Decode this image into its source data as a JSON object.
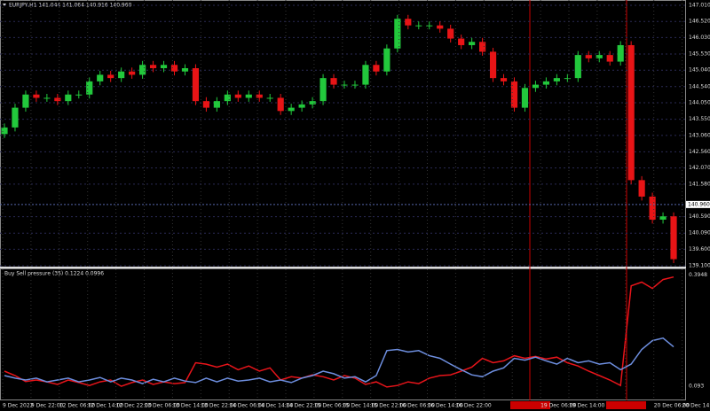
{
  "chart_data": [
    {
      "type": "candlestick",
      "title": "EURJPY,H1  141.044 141.064 140.916 140.960",
      "up_color": "#22c83c",
      "down_color": "#e81416",
      "grid": true,
      "open": [
        143.1,
        143.3,
        143.9,
        144.3,
        144.2,
        144.2,
        144.1,
        144.3,
        144.3,
        144.7,
        144.9,
        144.8,
        145.0,
        144.9,
        145.2,
        145.1,
        145.2,
        145.0,
        145.1,
        144.1,
        143.9,
        144.1,
        144.3,
        144.2,
        144.3,
        144.2,
        144.2,
        143.8,
        143.9,
        144.0,
        144.1,
        144.8,
        144.6,
        144.6,
        144.6,
        145.2,
        145.0,
        145.7,
        146.6,
        146.4,
        146.4,
        146.4,
        146.3,
        146.0,
        145.8,
        145.9,
        145.6,
        144.8,
        144.7,
        143.9,
        144.5,
        144.6,
        144.7,
        144.8,
        144.8,
        145.5,
        145.4,
        145.5,
        145.3,
        145.8,
        141.7,
        141.2,
        140.5,
        140.6
      ],
      "high": [
        143.42,
        144.02,
        144.42,
        144.42,
        144.32,
        144.32,
        144.42,
        144.42,
        144.82,
        145.02,
        145.02,
        145.12,
        145.12,
        145.32,
        145.32,
        145.32,
        145.32,
        145.22,
        145.22,
        144.22,
        144.22,
        144.42,
        144.42,
        144.42,
        144.42,
        144.32,
        144.32,
        144.02,
        144.12,
        144.22,
        144.92,
        144.92,
        144.72,
        144.72,
        145.32,
        145.32,
        145.82,
        146.72,
        146.72,
        146.52,
        146.52,
        146.52,
        146.42,
        146.12,
        146.02,
        146.02,
        145.72,
        144.92,
        144.82,
        144.62,
        144.72,
        144.82,
        144.92,
        144.92,
        145.62,
        145.62,
        145.62,
        145.62,
        145.92,
        145.92,
        141.82,
        141.32,
        140.72,
        140.72
      ],
      "low": [
        142.98,
        143.18,
        143.78,
        144.08,
        144.08,
        143.98,
        143.98,
        144.18,
        144.18,
        144.58,
        144.68,
        144.68,
        144.78,
        144.78,
        144.98,
        144.98,
        144.88,
        144.88,
        143.98,
        143.78,
        143.78,
        143.98,
        144.08,
        144.08,
        144.08,
        144.08,
        143.68,
        143.68,
        143.78,
        143.88,
        143.98,
        144.48,
        144.48,
        144.48,
        144.48,
        144.88,
        144.88,
        145.58,
        146.28,
        146.28,
        146.28,
        146.18,
        145.88,
        145.68,
        145.68,
        145.48,
        144.68,
        144.58,
        143.78,
        143.78,
        144.38,
        144.48,
        144.58,
        144.68,
        144.68,
        145.28,
        145.28,
        145.18,
        145.18,
        141.58,
        141.08,
        140.38,
        140.38,
        139.18
      ],
      "close": [
        143.3,
        143.9,
        144.3,
        144.2,
        144.2,
        144.1,
        144.3,
        144.3,
        144.7,
        144.9,
        144.8,
        145.0,
        144.9,
        145.2,
        145.1,
        145.2,
        145.0,
        145.1,
        144.1,
        143.9,
        144.1,
        144.3,
        144.2,
        144.3,
        144.2,
        144.2,
        143.8,
        143.9,
        144.0,
        144.1,
        144.8,
        144.6,
        144.6,
        144.6,
        145.2,
        145.0,
        145.7,
        146.6,
        146.4,
        146.4,
        146.4,
        146.3,
        146.0,
        145.8,
        145.9,
        145.6,
        144.8,
        144.7,
        143.9,
        144.5,
        144.6,
        144.7,
        144.8,
        144.8,
        145.5,
        145.4,
        145.5,
        145.3,
        145.8,
        141.7,
        141.2,
        140.5,
        140.6,
        139.3
      ],
      "ylim": [
        139.1,
        147.01
      ],
      "yticks": [
        {
          "value": 147.01,
          "label": "147.010"
        },
        {
          "value": 146.52,
          "label": "146.520"
        },
        {
          "value": 146.03,
          "label": "146.030"
        },
        {
          "value": 145.53,
          "label": "145.530"
        },
        {
          "value": 145.04,
          "label": "145.040"
        },
        {
          "value": 144.54,
          "label": "144.540"
        },
        {
          "value": 144.05,
          "label": "144.050"
        },
        {
          "value": 143.55,
          "label": "143.550"
        },
        {
          "value": 143.06,
          "label": "143.060"
        },
        {
          "value": 142.56,
          "label": "142.560"
        },
        {
          "value": 142.07,
          "label": "142.070"
        },
        {
          "value": 141.58,
          "label": "141.580"
        },
        {
          "value": 140.59,
          "label": "140.590"
        },
        {
          "value": 140.09,
          "label": "140.090"
        },
        {
          "value": 139.6,
          "label": "139.600"
        },
        {
          "value": 139.1,
          "label": "139.100"
        }
      ],
      "last_price": {
        "value": 140.96,
        "label": "140.960"
      }
    },
    {
      "type": "line",
      "title": "Buy Sell pressure (35) 0.1224 0.0996",
      "series": [
        {
          "color": "#e8141a",
          "values": [
            0.134,
            0.122,
            0.106,
            0.11,
            0.105,
            0.098,
            0.11,
            0.103,
            0.095,
            0.105,
            0.11,
            0.093,
            0.103,
            0.11,
            0.098,
            0.105,
            0.1,
            0.103,
            0.157,
            0.153,
            0.145,
            0.153,
            0.138,
            0.148,
            0.134,
            0.143,
            0.11,
            0.119,
            0.115,
            0.124,
            0.119,
            0.11,
            0.122,
            0.115,
            0.098,
            0.105,
            0.091,
            0.095,
            0.105,
            0.1,
            0.115,
            0.122,
            0.124,
            0.134,
            0.145,
            0.169,
            0.157,
            0.162,
            0.176,
            0.169,
            0.174,
            0.167,
            0.172,
            0.157,
            0.148,
            0.134,
            0.122,
            0.11,
            0.095,
            0.366,
            0.376,
            0.359,
            0.383,
            0.39
          ]
        },
        {
          "color": "#6e8fe0",
          "values": [
            0.122,
            0.115,
            0.11,
            0.115,
            0.105,
            0.11,
            0.115,
            0.105,
            0.11,
            0.117,
            0.105,
            0.115,
            0.11,
            0.1,
            0.112,
            0.105,
            0.115,
            0.107,
            0.103,
            0.115,
            0.105,
            0.115,
            0.107,
            0.11,
            0.115,
            0.105,
            0.11,
            0.103,
            0.115,
            0.122,
            0.134,
            0.127,
            0.115,
            0.119,
            0.105,
            0.122,
            0.19,
            0.193,
            0.186,
            0.19,
            0.176,
            0.169,
            0.153,
            0.138,
            0.124,
            0.119,
            0.134,
            0.143,
            0.169,
            0.164,
            0.172,
            0.162,
            0.153,
            0.169,
            0.157,
            0.162,
            0.153,
            0.157,
            0.138,
            0.153,
            0.193,
            0.217,
            0.224,
            0.2
          ]
        }
      ],
      "ylim": [
        0.057,
        0.411
      ],
      "yticks": [
        0.093,
        0.3948
      ],
      "xtick_labels": [
        "9 Dec 2022",
        "9 Dec 22:00",
        "12 Dec 06:00",
        "12 Dec 14:00",
        "12 Dec 22:00",
        "13 Dec 06:00",
        "13 Dec 14:00",
        "13 Dec 22:00",
        "14 Dec 06:00",
        "14 Dec 14:00",
        "14 Dec 22:00",
        "15 Dec 06:00",
        "15 Dec 14:00",
        "15 Dec 22:00",
        "16 Dec 06:00",
        "16 Dec 14:00",
        "16 Dec 22:00",
        "",
        "",
        "19 Dec 06:00",
        "19 Dec 14:00",
        "",
        "",
        "20 Dec 06:00",
        "20 Dec 14:00"
      ]
    }
  ]
}
